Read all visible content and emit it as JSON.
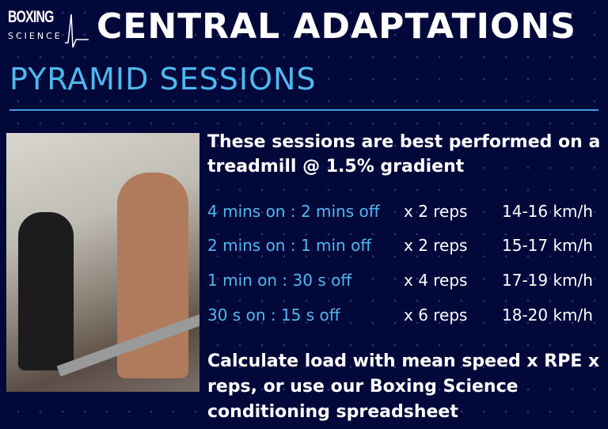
{
  "logo": {
    "line1": "BOXING",
    "line2": "SCIENCE"
  },
  "title": "CENTRAL ADAPTATIONS",
  "subtitle": "PYRAMID SESSIONS",
  "intro": "These sessions are best performed on a treadmill @ 1.5% gradient",
  "sessions": [
    {
      "interval": "4 mins on : 2 mins off",
      "reps": "x 2 reps",
      "speed": "14-16 km/h"
    },
    {
      "interval": "2 mins on : 1 min off",
      "reps": "x 2 reps",
      "speed": "15-17 km/h"
    },
    {
      "interval": "1 min on : 30 s off",
      "reps": "x 4 reps",
      "speed": "17-19 km/h"
    },
    {
      "interval": "30 s on : 15 s off",
      "reps": "x 6 reps",
      "speed": "18-20 km/h"
    }
  ],
  "outro": "Calculate load with mean speed x RPE x reps, or use our Boxing Science conditioning spreadsheet",
  "colors": {
    "background": "#03083a",
    "accent": "#4fb8ee"
  }
}
